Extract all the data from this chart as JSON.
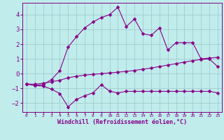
{
  "xlabel": "Windchill (Refroidissement éolien,°C)",
  "bg_color": "#c0ecec",
  "grid_color": "#a0ccd0",
  "line_color": "#880088",
  "spine_color": "#800080",
  "tick_color": "#880088",
  "x": [
    0,
    1,
    2,
    3,
    4,
    5,
    6,
    7,
    8,
    9,
    10,
    11,
    12,
    13,
    14,
    15,
    16,
    17,
    18,
    19,
    20,
    21,
    22,
    23
  ],
  "line1": [
    -0.7,
    -0.8,
    -0.75,
    -0.4,
    0.2,
    1.8,
    2.5,
    3.1,
    3.5,
    3.8,
    4.0,
    4.5,
    3.2,
    3.7,
    2.7,
    2.6,
    3.1,
    1.6,
    2.1,
    2.1,
    2.1,
    1.0,
    1.05,
    1.1
  ],
  "line2": [
    -0.7,
    -0.8,
    -0.85,
    -1.05,
    -1.35,
    -2.25,
    -1.75,
    -1.5,
    -1.3,
    -0.75,
    -1.2,
    -1.3,
    -1.2,
    -1.2,
    -1.2,
    -1.2,
    -1.2,
    -1.2,
    -1.2,
    -1.2,
    -1.2,
    -1.2,
    -1.2,
    -1.3
  ],
  "line3": [
    -0.7,
    -0.72,
    -0.65,
    -0.55,
    -0.45,
    -0.28,
    -0.18,
    -0.1,
    -0.05,
    0.0,
    0.05,
    0.1,
    0.15,
    0.22,
    0.3,
    0.38,
    0.48,
    0.58,
    0.68,
    0.78,
    0.88,
    0.96,
    1.0,
    0.48
  ],
  "ylim": [
    -2.6,
    4.8
  ],
  "yticks": [
    -2,
    -1,
    0,
    1,
    2,
    3,
    4
  ],
  "xlim": [
    -0.5,
    23.5
  ],
  "markersize": 2.5,
  "linewidth": 0.8
}
